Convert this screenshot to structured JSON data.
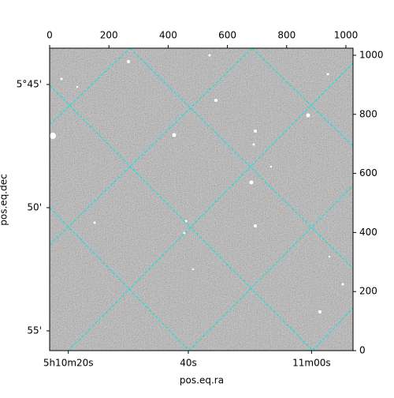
{
  "chart_data": {
    "type": "image",
    "xlabel": "pos.eq.ra",
    "ylabel": "pos.eq.dec",
    "xlim": [
      0,
      1024
    ],
    "ylim": [
      0,
      1024
    ],
    "xticks": [
      0,
      200,
      400,
      600,
      800,
      1000
    ],
    "yticks": [
      0,
      200,
      400,
      600,
      800,
      1000
    ],
    "ra_ticks": [
      {
        "value": 63,
        "label": "5h10m20s"
      },
      {
        "value": 468,
        "label": "40s"
      },
      {
        "value": 884,
        "label": "11m00s"
      }
    ],
    "dec_ticks": [
      {
        "value": 901,
        "label": "5°45'"
      },
      {
        "value": 484,
        "label": "50'"
      },
      {
        "value": 67,
        "label": "55'"
      }
    ],
    "grid_color": "#00e5e5"
  }
}
